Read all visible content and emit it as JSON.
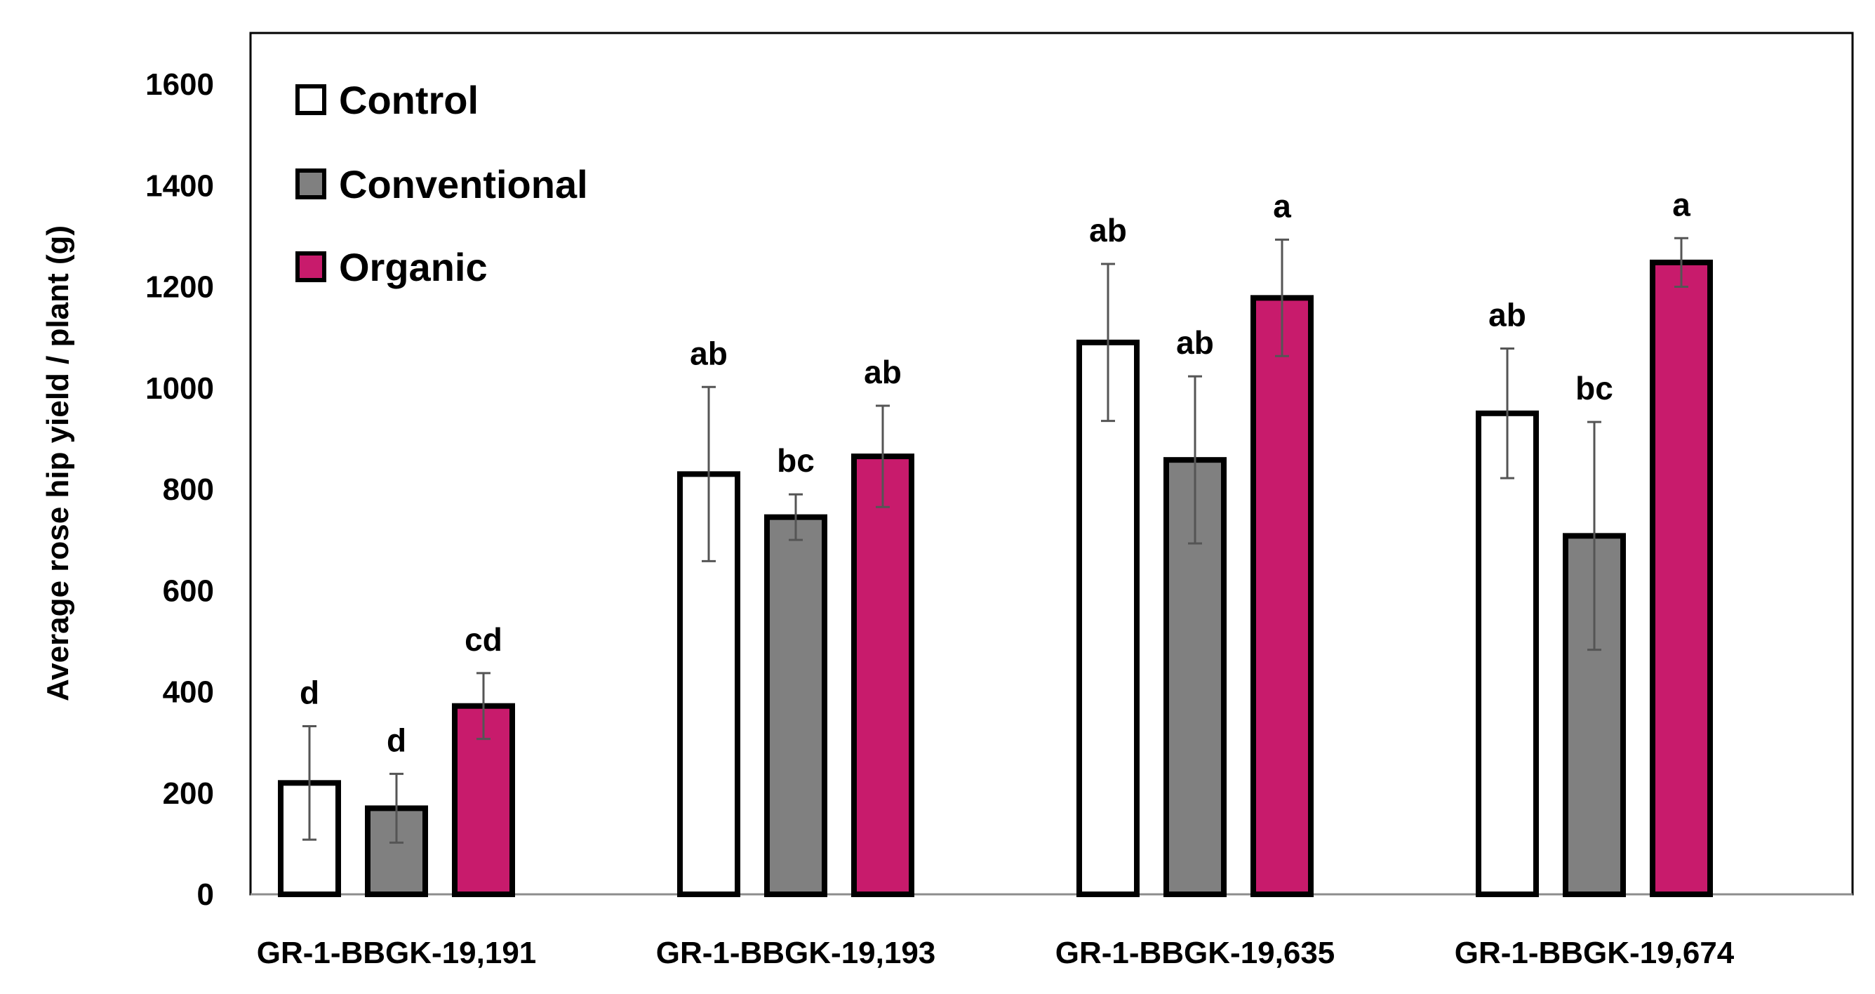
{
  "chart_data": {
    "type": "bar",
    "title": "",
    "xlabel": "",
    "ylabel": "Average rose hip yield / plant (g)",
    "ylim": [
      0,
      1600
    ],
    "yticks": [
      0,
      200,
      400,
      600,
      800,
      1000,
      1200,
      1400,
      1600
    ],
    "grid": false,
    "legend_position": "top-left",
    "categories": [
      "GR-1-BBGK-19,191",
      "GR-1-BBGK-19,193",
      "GR-1-BBGK-19,635",
      "GR-1-BBGK-19,674"
    ],
    "series": [
      {
        "name": "Control",
        "color": "#ffffff",
        "values": [
          220,
          830,
          1090,
          950
        ],
        "error": [
          112,
          172,
          155,
          128
        ],
        "significance": [
          "d",
          "ab",
          "ab",
          "ab"
        ]
      },
      {
        "name": "Conventional",
        "color": "#808080",
        "values": [
          170,
          745,
          858,
          708
        ],
        "error": [
          68,
          45,
          165,
          225
        ],
        "significance": [
          "d",
          "bc",
          "ab",
          "bc"
        ]
      },
      {
        "name": "Organic",
        "color": "#c81b6c",
        "values": [
          372,
          865,
          1178,
          1248
        ],
        "error": [
          65,
          100,
          115,
          48
        ],
        "significance": [
          "cd",
          "ab",
          "a",
          "a"
        ]
      }
    ]
  }
}
